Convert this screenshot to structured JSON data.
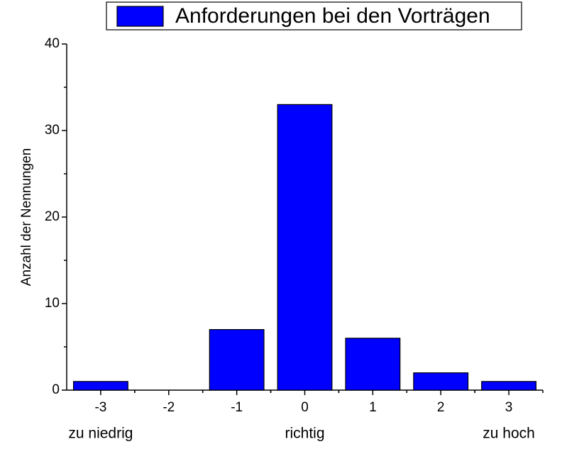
{
  "chart_data": {
    "type": "bar",
    "x": [
      -3,
      -2,
      -1,
      0,
      1,
      2,
      3
    ],
    "series": [
      {
        "name": "Anforderungen bei den Vorträgen",
        "color": "#0000ff",
        "values": [
          1,
          0,
          7,
          33,
          6,
          2,
          1
        ]
      }
    ],
    "xlim": [
      -3.5,
      3.5
    ],
    "xticks": [
      -3,
      -2,
      -1,
      0,
      1,
      2,
      3
    ],
    "ylim": [
      0,
      40
    ],
    "yticks": [
      0,
      10,
      20,
      30,
      40
    ],
    "ylabel": "Anzahl der Nennungen",
    "annotations": [
      "zu niedrig",
      "richtig",
      "zu hoch"
    ],
    "legend": "top"
  }
}
